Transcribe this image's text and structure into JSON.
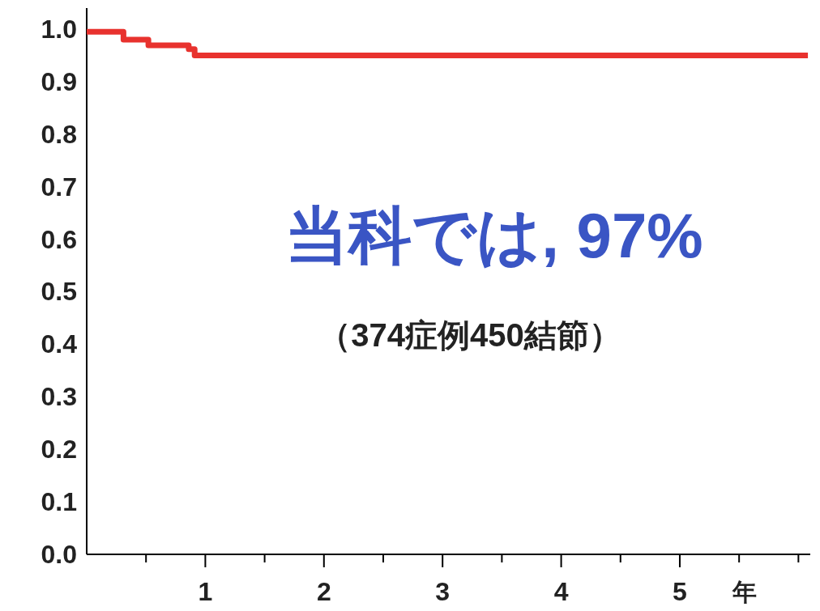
{
  "chart_data": {
    "type": "step",
    "xlabel": "年",
    "x": [
      0,
      0.31,
      0.52,
      0.86,
      0.91,
      6.08
    ],
    "series": [
      {
        "color": "#e8322e",
        "values": [
          0.995,
          0.98,
          0.969,
          0.962,
          0.95,
          0.95
        ]
      }
    ],
    "xlim": [
      0,
      6.1
    ],
    "ylim": [
      0,
      1.04
    ],
    "xticks": [
      {
        "value": 0.5,
        "label": null
      },
      1,
      {
        "value": 1.5,
        "label": null
      },
      2,
      {
        "value": 2.5,
        "label": null
      },
      3,
      {
        "value": 3.5,
        "label": null
      },
      4,
      {
        "value": 4.5,
        "label": null
      },
      5,
      {
        "value": 5.5,
        "label": null
      },
      {
        "value": 6,
        "label": null
      }
    ],
    "yticks": [
      {
        "value": 0,
        "label": "0.0"
      },
      {
        "value": 0.1,
        "label": "0.1"
      },
      {
        "value": 0.2,
        "label": "0.2"
      },
      {
        "value": 0.3,
        "label": "0.3"
      },
      {
        "value": 0.4,
        "label": "0.4"
      },
      {
        "value": 0.5,
        "label": "0.5"
      },
      {
        "value": 0.6,
        "label": "0.6"
      },
      {
        "value": 0.7,
        "label": "0.7"
      },
      {
        "value": 0.8,
        "label": "0.8"
      },
      {
        "value": 0.9,
        "label": "0.9"
      },
      {
        "value": 1,
        "label": "1.0"
      }
    ],
    "annotations": [
      "当科では, 97%",
      "（374症例450結節）"
    ],
    "grid": false
  }
}
